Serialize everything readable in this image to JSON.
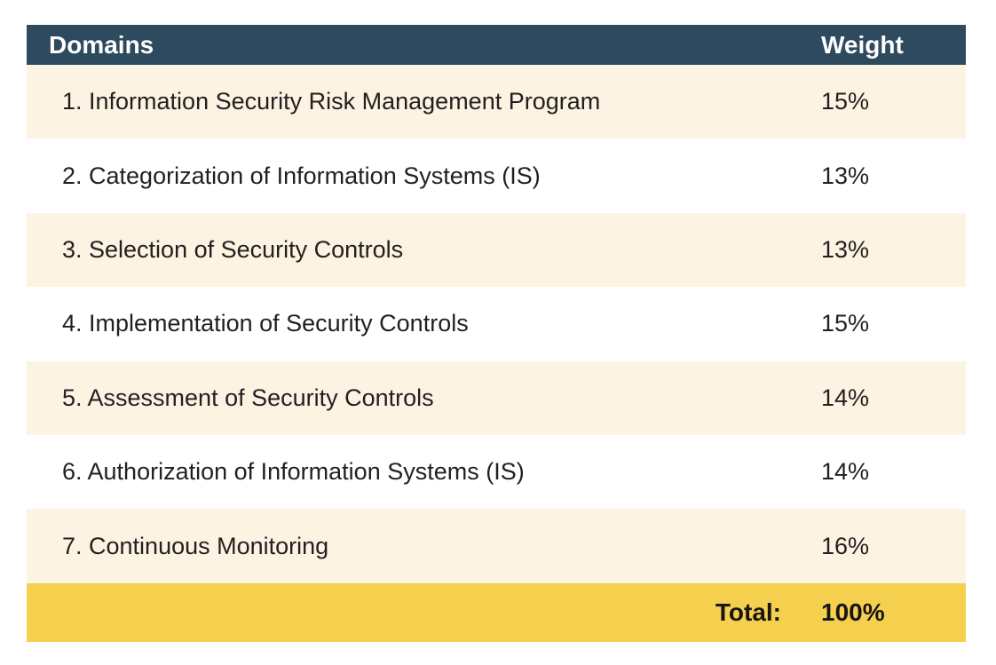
{
  "colors": {
    "header_bg": "#2d4a5e",
    "header_text": "#ffffff",
    "row_alt_bg": "#fdf3e2",
    "row_bg": "#ffffff",
    "total_bg": "#f5d04f",
    "body_text": "#231f20"
  },
  "table": {
    "columns": [
      "Domains",
      "Weight"
    ],
    "rows": [
      {
        "domain": "1. Information Security Risk Management Program",
        "weight": "15%"
      },
      {
        "domain": "2. Categorization of Information Systems (IS)",
        "weight": "13%"
      },
      {
        "domain": "3. Selection of Security Controls",
        "weight": "13%"
      },
      {
        "domain": "4. Implementation of Security Controls",
        "weight": "15%"
      },
      {
        "domain": "5. Assessment of Security Controls",
        "weight": "14%"
      },
      {
        "domain": "6. Authorization of Information Systems (IS)",
        "weight": "14%"
      },
      {
        "domain": "7. Continuous Monitoring",
        "weight": "16%"
      }
    ],
    "total_label": "Total:",
    "total_value": "100%"
  },
  "chart_data": {
    "type": "table",
    "title": "",
    "columns": [
      "Domains",
      "Weight"
    ],
    "categories": [
      "1. Information Security Risk Management Program",
      "2. Categorization of Information Systems (IS)",
      "3. Selection of Security Controls",
      "4. Implementation of Security Controls",
      "5. Assessment of Security Controls",
      "6. Authorization of Information Systems (IS)",
      "7. Continuous Monitoring"
    ],
    "values": [
      15,
      13,
      13,
      15,
      14,
      14,
      16
    ],
    "value_unit": "%",
    "total": {
      "label": "Total:",
      "value": 100
    },
    "layout_hints": {
      "header_style": "dark navy band, white bold text",
      "row_striping": "odd rows cream (#fdf3e2), even rows white",
      "total_row_style": "gold band (#f5d04f), bold black text, label right-aligned to weight column"
    }
  }
}
